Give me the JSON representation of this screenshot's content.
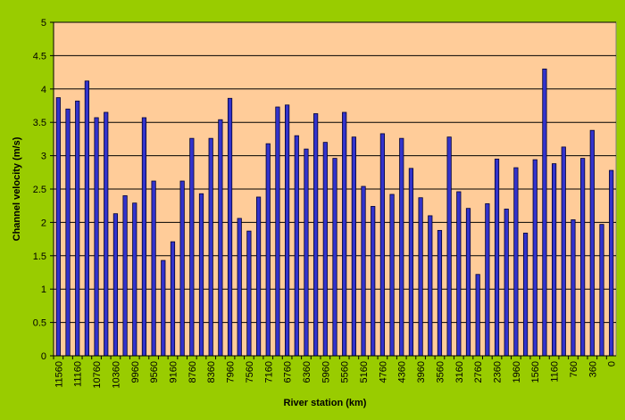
{
  "chart_data": {
    "type": "bar",
    "x_label": "River station (km)",
    "y_label": "Channel velocity (m/s)",
    "categories": [
      "11560",
      null,
      "11160",
      null,
      "10760",
      null,
      "10360",
      null,
      "9960",
      null,
      "9560",
      null,
      "9160",
      null,
      "8760",
      null,
      "8360",
      null,
      "7960",
      null,
      "7560",
      null,
      "7160",
      null,
      "6760",
      null,
      "6360",
      null,
      "5960",
      null,
      "5560",
      null,
      "5160",
      null,
      "4760",
      null,
      "4360",
      null,
      "3960",
      null,
      "3560",
      null,
      "3160",
      null,
      "2760",
      null,
      "2360",
      null,
      "1960",
      null,
      "1560",
      null,
      "1160",
      null,
      "760",
      null,
      "360",
      null,
      "0"
    ],
    "values": [
      3.87,
      3.7,
      3.82,
      4.12,
      3.57,
      3.65,
      2.13,
      2.4,
      2.29,
      3.57,
      2.62,
      1.43,
      1.71,
      2.62,
      3.26,
      2.43,
      3.26,
      3.54,
      3.86,
      2.06,
      1.87,
      2.38,
      3.18,
      3.73,
      3.76,
      3.3,
      3.1,
      3.63,
      3.2,
      2.96,
      3.65,
      3.28,
      2.54,
      2.24,
      3.33,
      2.42,
      3.26,
      2.81,
      2.37,
      2.1,
      1.88,
      3.28,
      2.46,
      2.21,
      1.22,
      2.28,
      2.95,
      2.2,
      2.82,
      1.84,
      2.94,
      4.3,
      2.88,
      3.13,
      2.04,
      2.96,
      3.38,
      1.97,
      2.78
    ],
    "color": "#3333cc",
    "ylim": [
      0,
      5
    ],
    "yticks": [
      0,
      0.5,
      1,
      1.5,
      2,
      2.5,
      3,
      3.5,
      4,
      4.5,
      5
    ],
    "grid": true
  }
}
